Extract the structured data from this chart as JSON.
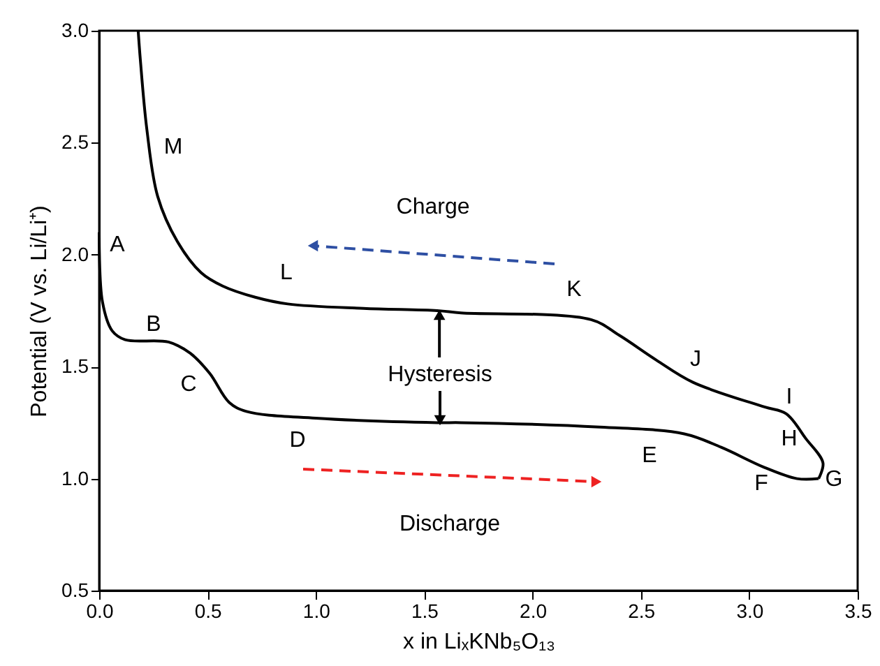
{
  "chart_data": {
    "type": "line",
    "xlabel": "x in LiₓKNb₅O₁₃",
    "ylabel": "Potential (V vs. Li/Li⁺)",
    "xlim": [
      0,
      3.5
    ],
    "ylim": [
      0.5,
      3.0
    ],
    "xticks": [
      {
        "value": 0,
        "label": "0.0"
      },
      0.5,
      {
        "value": 1,
        "label": "1.0"
      },
      1.5,
      {
        "value": 2,
        "label": "2.0"
      },
      2.5,
      {
        "value": 3,
        "label": "3.0"
      },
      3.5
    ],
    "yticks": [
      0.5,
      {
        "value": 1,
        "label": "1.0"
      },
      1.5,
      {
        "value": 2,
        "label": "2.0"
      },
      2.5,
      {
        "value": 3,
        "label": "3.0"
      }
    ],
    "marker": "none",
    "line_style": "solid",
    "legend": false,
    "grid": false,
    "series": [
      {
        "color": "#000000",
        "x": [
          0,
          0.015,
          0.06,
          0.12,
          0.32,
          0.42,
          0.51,
          0.6,
          0.68,
          1.0,
          1.56,
          1.67,
          2.31,
          2.7,
          2.87,
          3.07,
          3.22,
          3.32
        ],
        "values": [
          2.1,
          1.79,
          1.66,
          1.62,
          1.61,
          1.56,
          1.47,
          1.34,
          1.3,
          1.27,
          1.25,
          1.25,
          1.23,
          1.2,
          1.14,
          1.05,
          1.0,
          1.0
        ]
      },
      {
        "color": "#000000",
        "x": [
          3.32,
          3.34,
          3.26,
          3.17,
          3.07,
          2.74,
          2.57,
          2.4,
          2.27,
          1.67,
          1.56,
          1.22,
          0.87,
          0.72,
          0.57,
          0.47,
          0.36,
          0.27,
          0.22,
          0.19,
          0.18
        ],
        "values": [
          1.0,
          1.07,
          1.18,
          1.29,
          1.32,
          1.43,
          1.53,
          1.64,
          1.71,
          1.74,
          1.75,
          1.76,
          1.78,
          1.81,
          1.86,
          1.92,
          2.06,
          2.26,
          2.56,
          2.87,
          3.0
        ]
      }
    ],
    "annotations": [
      "A",
      "B",
      "C",
      "D",
      "E",
      "F",
      "G",
      "H",
      "I",
      "J",
      "K",
      "L",
      "M",
      "Charge",
      "Discharge",
      {
        "text": "Hysteresis",
        "x": 1.57,
        "y": 1.75
      }
    ]
  }
}
